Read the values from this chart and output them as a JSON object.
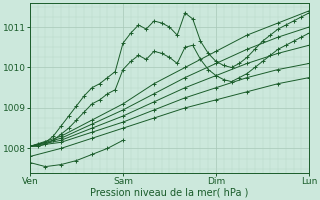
{
  "bg_color": "#cce8dc",
  "plot_bg_color": "#cce8dc",
  "grid_color_major": "#a8c8b8",
  "grid_color_minor": "#b8d8c8",
  "line_color": "#1a5c2a",
  "xlabel": "Pression niveau de la mer( hPa )",
  "xlabel_color": "#1a5c2a",
  "tick_color": "#1a5c2a",
  "ylim": [
    1007.4,
    1011.6
  ],
  "yticks": [
    1008,
    1009,
    1010,
    1011
  ],
  "xtick_labels": [
    "Ven",
    "Sam",
    "Dim",
    "Lun"
  ],
  "xtick_positions": [
    0,
    72,
    144,
    216
  ],
  "total_hours": 216,
  "series": [
    {
      "name": "straight_top",
      "x": [
        0,
        24,
        48,
        72,
        96,
        120,
        144,
        168,
        192,
        216
      ],
      "y": [
        1008.05,
        1008.3,
        1008.7,
        1009.1,
        1009.6,
        1010.0,
        1010.4,
        1010.8,
        1011.1,
        1011.4
      ]
    },
    {
      "name": "straight_upper_mid",
      "x": [
        0,
        24,
        48,
        72,
        96,
        120,
        144,
        168,
        192,
        216
      ],
      "y": [
        1008.05,
        1008.25,
        1008.6,
        1008.95,
        1009.35,
        1009.75,
        1010.1,
        1010.45,
        1010.75,
        1011.0
      ]
    },
    {
      "name": "straight_mid",
      "x": [
        0,
        24,
        48,
        72,
        96,
        120,
        144,
        168,
        192,
        216
      ],
      "y": [
        1008.05,
        1008.2,
        1008.5,
        1008.8,
        1009.15,
        1009.5,
        1009.8,
        1010.1,
        1010.35,
        1010.55
      ]
    },
    {
      "name": "straight_lower_mid",
      "x": [
        0,
        24,
        48,
        72,
        96,
        120,
        144,
        168,
        192,
        216
      ],
      "y": [
        1008.05,
        1008.15,
        1008.4,
        1008.65,
        1008.95,
        1009.25,
        1009.5,
        1009.75,
        1009.95,
        1010.1
      ]
    },
    {
      "name": "straight_low",
      "x": [
        0,
        24,
        48,
        72,
        96,
        120,
        144,
        168,
        192,
        216
      ],
      "y": [
        1007.8,
        1008.0,
        1008.25,
        1008.5,
        1008.75,
        1009.0,
        1009.2,
        1009.4,
        1009.6,
        1009.75
      ]
    },
    {
      "name": "wavy_high",
      "x": [
        0,
        6,
        12,
        18,
        24,
        30,
        36,
        42,
        48,
        54,
        60,
        66,
        72,
        78,
        84,
        90,
        96,
        102,
        108,
        114,
        120,
        126,
        132,
        138,
        144,
        150,
        156,
        162,
        168,
        174,
        180,
        186,
        192,
        198,
        204,
        210,
        216
      ],
      "y": [
        1008.05,
        1008.1,
        1008.15,
        1008.3,
        1008.55,
        1008.8,
        1009.05,
        1009.3,
        1009.5,
        1009.6,
        1009.75,
        1009.9,
        1010.6,
        1010.85,
        1011.05,
        1010.95,
        1011.15,
        1011.1,
        1011.0,
        1010.8,
        1011.35,
        1011.2,
        1010.65,
        1010.35,
        1010.15,
        1010.05,
        1010.0,
        1010.1,
        1010.25,
        1010.45,
        1010.65,
        1010.8,
        1010.95,
        1011.05,
        1011.15,
        1011.25,
        1011.35
      ]
    },
    {
      "name": "wavy_low",
      "x": [
        0,
        6,
        12,
        18,
        24,
        30,
        36,
        42,
        48,
        54,
        60,
        66,
        72,
        78,
        84,
        90,
        96,
        102,
        108,
        114,
        120,
        126,
        132,
        138,
        144,
        150,
        156,
        162,
        168,
        174,
        180,
        186,
        192,
        198,
        204,
        210,
        216
      ],
      "y": [
        1008.05,
        1008.05,
        1008.1,
        1008.2,
        1008.35,
        1008.5,
        1008.7,
        1008.9,
        1009.1,
        1009.2,
        1009.35,
        1009.45,
        1009.95,
        1010.15,
        1010.3,
        1010.2,
        1010.4,
        1010.35,
        1010.25,
        1010.1,
        1010.5,
        1010.55,
        1010.2,
        1009.95,
        1009.8,
        1009.7,
        1009.65,
        1009.75,
        1009.85,
        1010.0,
        1010.15,
        1010.3,
        1010.45,
        1010.55,
        1010.65,
        1010.75,
        1010.85
      ]
    },
    {
      "name": "dip_lowest",
      "x": [
        0,
        12,
        24,
        36,
        48,
        60,
        72
      ],
      "y": [
        1007.65,
        1007.55,
        1007.6,
        1007.7,
        1007.85,
        1008.0,
        1008.2
      ]
    }
  ]
}
